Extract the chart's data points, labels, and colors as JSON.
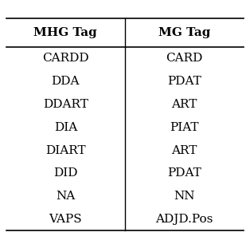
{
  "col1_header": "MHG Tag",
  "col2_header": "MG Tag",
  "col1_data": [
    "CARDD",
    "DDA",
    "DDART",
    "DIA",
    "DIART",
    "DID",
    "NA",
    "VAPS"
  ],
  "col2_data": [
    "CARD",
    "PDAT",
    "ART",
    "PIAT",
    "ART",
    "PDAT",
    "NN",
    "ADJD.Pos"
  ],
  "bg_color": "#ffffff",
  "text_color": "#000000",
  "header_fontsize": 11,
  "body_fontsize": 11,
  "fig_width": 3.14,
  "fig_height": 3.06,
  "dpi": 100
}
